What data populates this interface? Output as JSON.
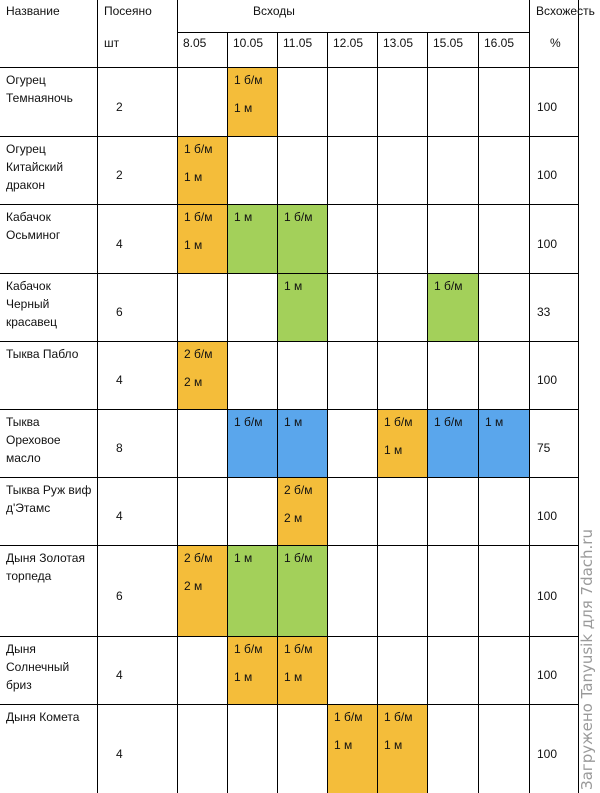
{
  "header": {
    "name": "Название",
    "sown": "Посеяно",
    "sown_unit": "шт",
    "shoots": "Всходы",
    "germination": "Всхожесть",
    "germination_unit": "%",
    "dates": [
      "8.05",
      "10.05",
      "11.05",
      "12.05",
      "13.05",
      "15.05",
      "16.05"
    ]
  },
  "colors": {
    "orange": "#f4bd3a",
    "green": "#a3d05a",
    "blue": "#5aa6ec"
  },
  "rows": [
    {
      "name": "Огурец Темнаяночь",
      "sown": "2",
      "germination": "100",
      "cells": [
        null,
        {
          "color": "orange",
          "l1": "1 б/м",
          "l2": "1 м"
        },
        null,
        null,
        null,
        null,
        null
      ]
    },
    {
      "name": "Огурец Китайский дракон",
      "sown": "2",
      "germination": "100",
      "cells": [
        {
          "color": "orange",
          "l1": "1 б/м",
          "l2": "1 м"
        },
        null,
        null,
        null,
        null,
        null,
        null
      ]
    },
    {
      "name": "Кабачок Осьминог",
      "sown": "4",
      "germination": "100",
      "cells": [
        {
          "color": "orange",
          "l1": "1 б/м",
          "l2": "1 м"
        },
        {
          "color": "green",
          "l1": "1 м",
          "l2": ""
        },
        {
          "color": "green",
          "l1": "1 б/м",
          "l2": ""
        },
        null,
        null,
        null,
        null
      ]
    },
    {
      "name": "Кабачок Черный красавец",
      "sown": "6",
      "germination": "33",
      "cells": [
        null,
        null,
        {
          "color": "green",
          "l1": "1 м",
          "l2": ""
        },
        null,
        null,
        {
          "color": "green",
          "l1": "1 б/м",
          "l2": ""
        },
        null
      ]
    },
    {
      "name": "Тыква Пабло",
      "sown": "4",
      "germination": "100",
      "cells": [
        {
          "color": "orange",
          "l1": "2 б/м",
          "l2": "2 м"
        },
        null,
        null,
        null,
        null,
        null,
        null
      ]
    },
    {
      "name": "Тыква Ореховое масло",
      "sown": "8",
      "germination": "75",
      "cells": [
        null,
        {
          "color": "blue",
          "l1": "1 б/м",
          "l2": ""
        },
        {
          "color": "blue",
          "l1": "1 м",
          "l2": ""
        },
        null,
        {
          "color": "orange",
          "l1": "1 б/м",
          "l2": "1 м"
        },
        {
          "color": "blue",
          "l1": "1 б/м",
          "l2": ""
        },
        {
          "color": "blue",
          "l1": "1 м",
          "l2": ""
        }
      ]
    },
    {
      "name": "Тыква Руж виф д'Этамс",
      "sown": "4",
      "germination": "100",
      "cells": [
        null,
        null,
        {
          "color": "orange",
          "l1": "2 б/м",
          "l2": "2 м"
        },
        null,
        null,
        null,
        null
      ]
    },
    {
      "name": "Дыня Золотая торпеда",
      "sown": "6",
      "germination": "100",
      "cells": [
        {
          "color": "orange",
          "l1": "2 б/м",
          "l2": "2 м"
        },
        {
          "color": "green",
          "l1": "1 м",
          "l2": ""
        },
        {
          "color": "green",
          "l1": "1 б/м",
          "l2": ""
        },
        null,
        null,
        null,
        null
      ]
    },
    {
      "name": "Дыня Солнечный бриз",
      "sown": "4",
      "germination": "100",
      "cells": [
        null,
        {
          "color": "orange",
          "l1": "1 б/м",
          "l2": "1 м"
        },
        {
          "color": "orange",
          "l1": "1 б/м",
          "l2": "1 м"
        },
        null,
        null,
        null,
        null
      ]
    },
    {
      "name": "Дыня Комета",
      "sown": "4",
      "germination": "100",
      "cells": [
        null,
        null,
        null,
        {
          "color": "orange",
          "l1": "1 б/м",
          "l2": "1 м"
        },
        {
          "color": "orange",
          "l1": "1 б/м",
          "l2": "1 м"
        },
        null,
        null
      ]
    }
  ],
  "watermark": "Загружено Tanyusik для 7dach.ru"
}
